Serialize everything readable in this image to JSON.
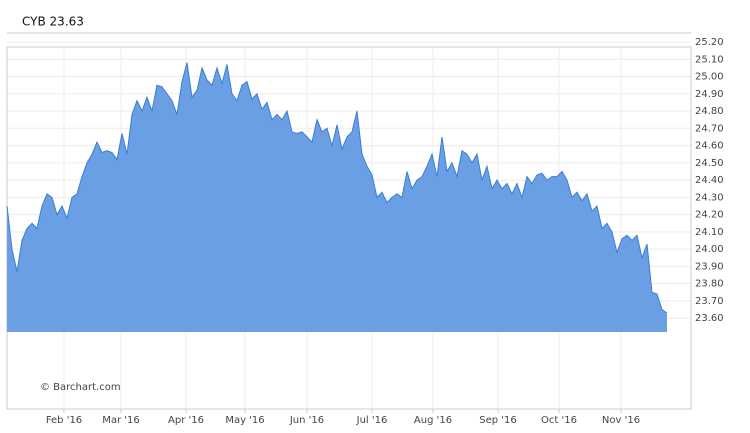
{
  "chart_data": {
    "type": "area",
    "title": "CYB 23.63",
    "watermark": "© Barchart.com",
    "color": "#6aa0e3",
    "line_color": "#3a7dd6",
    "grid": true,
    "values": [
      24.25,
      24.0,
      23.87,
      24.05,
      24.12,
      24.15,
      24.12,
      24.25,
      24.32,
      24.3,
      24.2,
      24.25,
      24.18,
      24.3,
      24.32,
      24.42,
      24.5,
      24.55,
      24.62,
      24.56,
      24.57,
      24.56,
      24.52,
      24.67,
      24.55,
      24.78,
      24.86,
      24.8,
      24.88,
      24.8,
      24.95,
      24.94,
      24.9,
      24.86,
      24.78,
      24.97,
      25.08,
      24.88,
      24.92,
      25.05,
      24.98,
      24.95,
      25.05,
      24.96,
      25.07,
      24.9,
      24.86,
      24.95,
      24.97,
      24.87,
      24.9,
      24.81,
      24.85,
      24.75,
      24.78,
      24.75,
      24.8,
      24.68,
      24.67,
      24.68,
      24.65,
      24.62,
      24.75,
      24.68,
      24.7,
      24.6,
      24.72,
      24.58,
      24.65,
      24.68,
      24.8,
      24.55,
      24.48,
      24.43,
      24.3,
      24.33,
      24.27,
      24.3,
      24.32,
      24.3,
      24.45,
      24.35,
      24.4,
      24.42,
      24.48,
      24.55,
      24.42,
      24.65,
      24.45,
      24.5,
      24.42,
      24.57,
      24.55,
      24.5,
      24.55,
      24.4,
      24.48,
      24.35,
      24.4,
      24.35,
      24.38,
      24.32,
      24.38,
      24.3,
      24.42,
      24.38,
      24.43,
      24.44,
      24.4,
      24.42,
      24.42,
      24.45,
      24.4,
      24.3,
      24.33,
      24.28,
      24.32,
      24.22,
      24.25,
      24.12,
      24.15,
      24.1,
      23.98,
      24.06,
      24.08,
      24.05,
      24.08,
      23.95,
      24.03,
      23.75,
      23.74,
      23.65,
      23.63
    ],
    "xlim": [
      0,
      136.8
    ],
    "xticks": [
      {
        "value": 11.4,
        "label": "Feb '16"
      },
      {
        "value": 22.8,
        "label": "Mar '16"
      },
      {
        "value": 35.8,
        "label": "Apr '16"
      },
      {
        "value": 47.6,
        "label": "May '16"
      },
      {
        "value": 60,
        "label": "Jun '16"
      },
      {
        "value": 73,
        "label": "Jul '16"
      },
      {
        "value": 85.2,
        "label": "Aug '16"
      },
      {
        "value": 98.2,
        "label": "Sep '16"
      },
      {
        "value": 110.4,
        "label": "Oct '16"
      },
      {
        "value": 122.8,
        "label": "Nov '16"
      }
    ],
    "ylim": [
      23.52,
      25.2
    ],
    "yticks": [
      {
        "value": 23.6,
        "label": "23.60"
      },
      {
        "value": 23.7,
        "label": "23.70"
      },
      {
        "value": 23.8,
        "label": "23.80"
      },
      {
        "value": 23.9,
        "label": "23.90"
      },
      {
        "value": 24.0,
        "label": "24.00"
      },
      {
        "value": 24.1,
        "label": "24.10"
      },
      {
        "value": 24.2,
        "label": "24.20"
      },
      {
        "value": 24.3,
        "label": "24.30"
      },
      {
        "value": 24.4,
        "label": "24.40"
      },
      {
        "value": 24.5,
        "label": "24.50"
      },
      {
        "value": 24.6,
        "label": "24.60"
      },
      {
        "value": 24.7,
        "label": "24.70"
      },
      {
        "value": 24.8,
        "label": "24.80"
      },
      {
        "value": 24.9,
        "label": "24.90"
      },
      {
        "value": 25.0,
        "label": "25.00"
      },
      {
        "value": 25.1,
        "label": "25.10"
      },
      {
        "value": 25.2,
        "label": "25.20"
      }
    ]
  }
}
